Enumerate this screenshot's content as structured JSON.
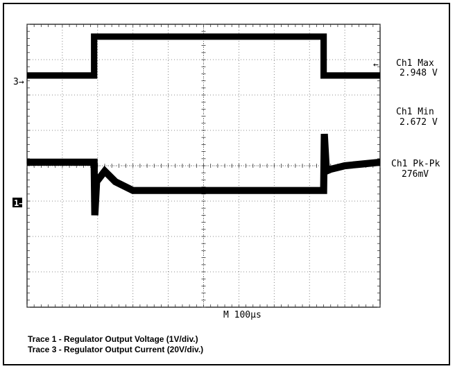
{
  "chart_data": {
    "type": "line",
    "grid": true,
    "divisions": {
      "x": 10,
      "y": 8
    },
    "timebase_label": "M  100µs",
    "series": [
      {
        "marker": "3",
        "x": [
          0,
          1.9,
          1.9,
          8.4,
          8.4,
          10
        ],
        "y": [
          6.55,
          6.55,
          7.65,
          7.65,
          6.55,
          6.55
        ],
        "thickness": 0.18
      },
      {
        "marker": "1",
        "x": [
          0,
          1.9,
          1.92,
          1.97,
          2.2,
          2.5,
          3.0,
          3.5,
          8.4,
          8.42,
          8.48,
          8.6,
          9.0,
          9.5,
          10
        ],
        "y": [
          4.1,
          4.1,
          2.6,
          3.55,
          3.85,
          3.55,
          3.3,
          3.3,
          3.3,
          4.9,
          3.85,
          3.9,
          4.0,
          4.05,
          4.1
        ],
        "thickness": 0.2
      }
    ],
    "measurements": [
      {
        "label": "Ch1 Max",
        "value": "2.948 V"
      },
      {
        "label": "Ch1 Min",
        "value": "2.672 V"
      },
      {
        "label": "Ch1 Pk-Pk",
        "value": "276mV"
      }
    ]
  },
  "captions": {
    "line1": "Trace 1 - Regulator Output Voltage (1V/div.)",
    "line2": "Trace 3 - Regulator Output Current (20V/div.)"
  }
}
